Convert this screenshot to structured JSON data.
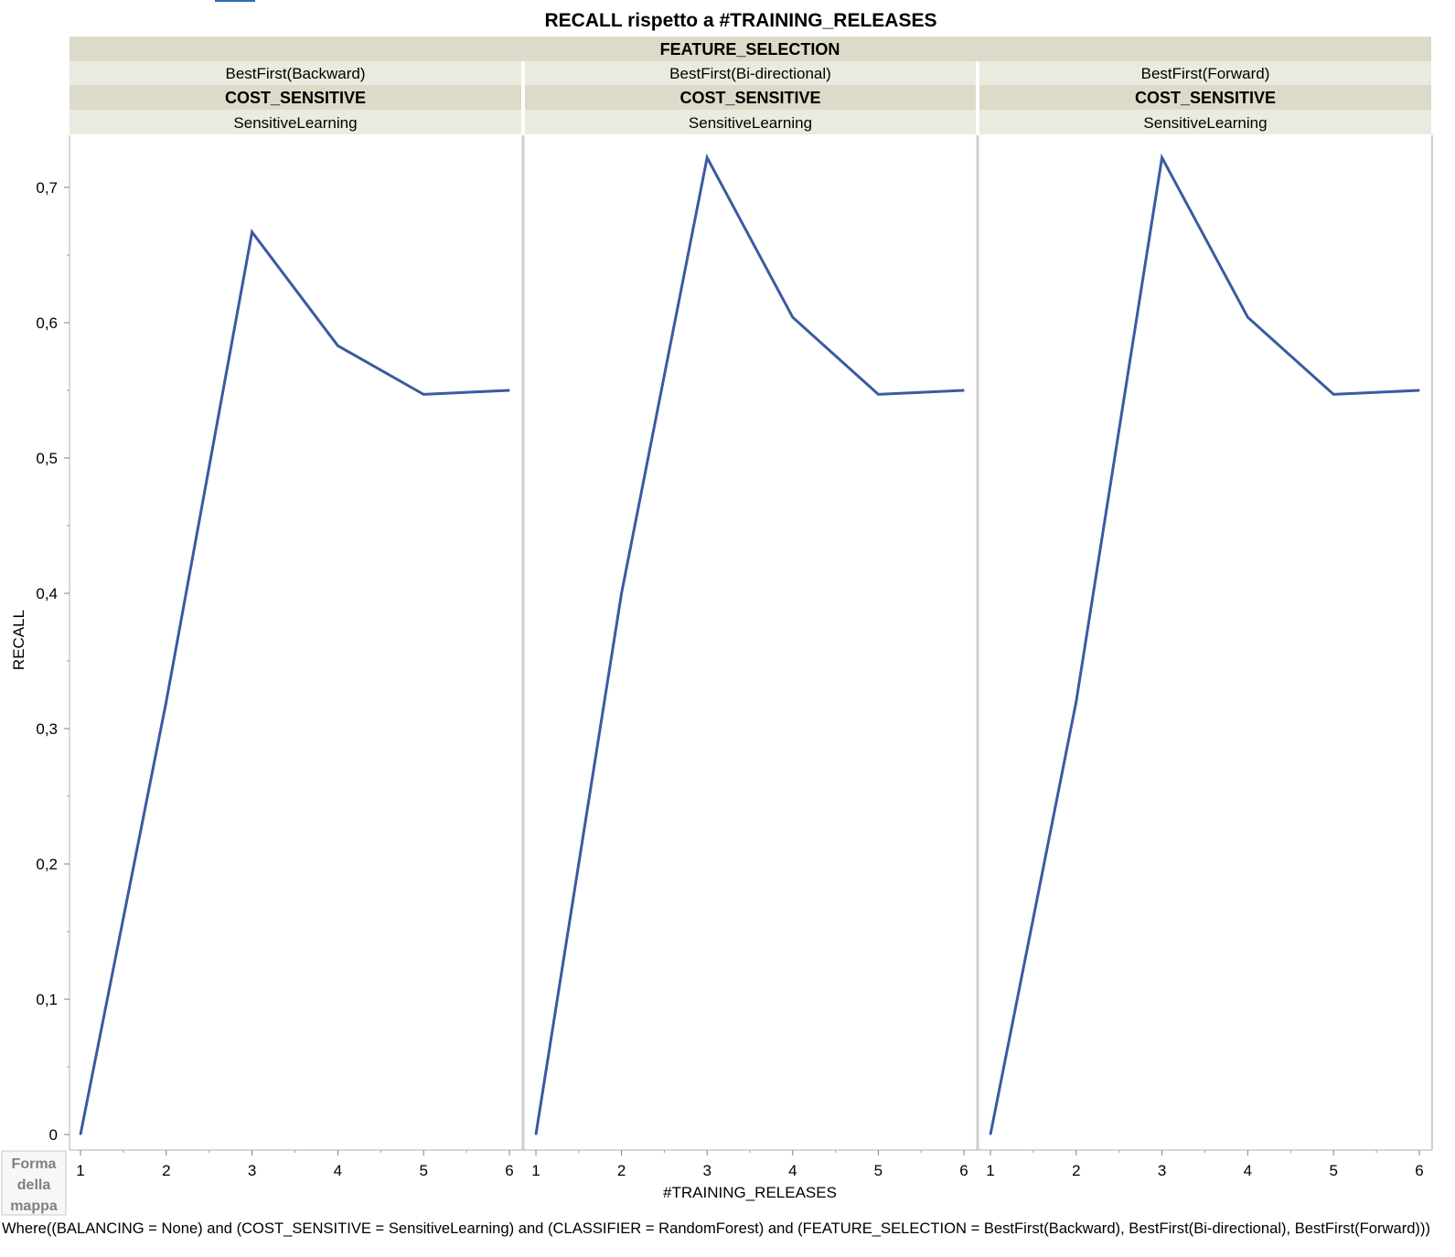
{
  "chart_data": {
    "type": "line",
    "title": "RECALL rispetto a #TRAINING_RELEASES",
    "xlabel": "#TRAINING_RELEASES",
    "ylabel": "RECALL",
    "group_header_1": "FEATURE_SELECTION",
    "group_header_2": "COST_SENSITIVE",
    "yticks": [
      "0",
      "0,1",
      "0,2",
      "0,3",
      "0,4",
      "0,5",
      "0,6",
      "0,7"
    ],
    "ylim": [
      0,
      0.75
    ],
    "xticks": [
      "1",
      "2",
      "3",
      "4",
      "5",
      "6"
    ],
    "xlim": [
      1,
      6
    ],
    "line_color": "#3A5BA0",
    "panels": [
      {
        "feature_selection": "BestFirst(Backward)",
        "cost_sensitive": "SensitiveLearning",
        "x": [
          1,
          2,
          3,
          4,
          5,
          6
        ],
        "y": [
          0.0,
          0.32,
          0.667,
          0.583,
          0.547,
          0.55
        ]
      },
      {
        "feature_selection": "BestFirst(Bi-directional)",
        "cost_sensitive": "SensitiveLearning",
        "x": [
          1,
          2,
          3,
          4,
          5,
          6
        ],
        "y": [
          0.0,
          0.4,
          0.722,
          0.604,
          0.547,
          0.55
        ]
      },
      {
        "feature_selection": "BestFirst(Forward)",
        "cost_sensitive": "SensitiveLearning",
        "x": [
          1,
          2,
          3,
          4,
          5,
          6
        ],
        "y": [
          0.0,
          0.32,
          0.722,
          0.604,
          0.547,
          0.55
        ]
      }
    ]
  },
  "legend_button": {
    "line1": "Forma",
    "line2": "della",
    "line3": "mappa"
  },
  "footer": "Where((BALANCING = None) and (COST_SENSITIVE = SensitiveLearning) and (CLASSIFIER = RandomForest) and (FEATURE_SELECTION = BestFirst(Backward), BestFirst(Bi-directional), BestFirst(Forward)))"
}
